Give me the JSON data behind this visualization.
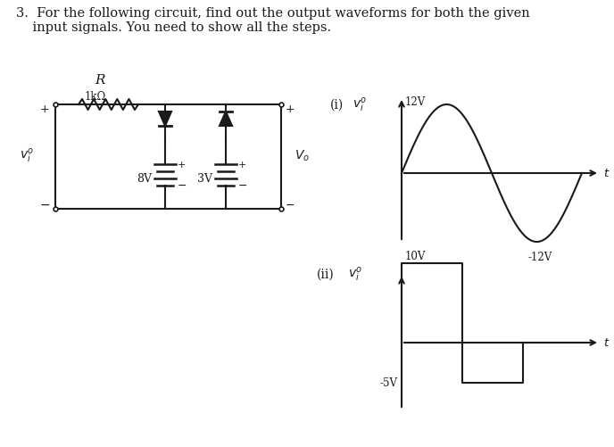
{
  "bg_color": "#ffffff",
  "line_color": "#1a1a1a",
  "title_line1": "3.  For the following circuit, find out the output waveforms for both the given",
  "title_line2": "    input signals. You need to show all the steps.",
  "title_fontsize": 10.5,
  "resistor_label": "R",
  "resistor_sublabel": "1kΩ",
  "v8_label": "8V",
  "v3_label": "3V",
  "w1_12v": "12V",
  "w1_neg12v": "-12V",
  "w1_t": "t",
  "w2_10v": "10V",
  "w2_neg5v": "-5V",
  "w2_t": "t"
}
